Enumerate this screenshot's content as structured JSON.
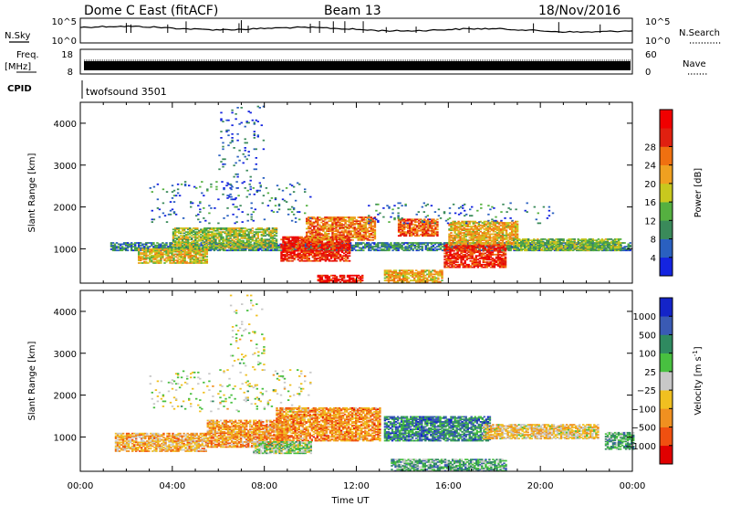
{
  "header": {
    "station": "Dome C East (fitACF)",
    "beam": "Beam 13",
    "date": "18/Nov/2016"
  },
  "panels": {
    "nsky_label": "N.Sky",
    "nsearch_label": "N.Search",
    "freq_label": "Freq.",
    "freq_unit": "[MHz]",
    "nave_label": "Nave",
    "cpid_label": "CPID",
    "cpid_value": "twofsound 3501",
    "nsky_ticks": [
      "10^5",
      "10^0"
    ],
    "nsearch_ticks": [
      "10^5",
      "10^0"
    ],
    "freq_ticks": [
      "18",
      "8"
    ],
    "nave_ticks": [
      "60",
      "0"
    ]
  },
  "chart_data": [
    {
      "type": "heatmap",
      "name": "power",
      "ylabel": "Slant Range [km]",
      "xlabel": "Time UT",
      "x_ticks": [
        "00:00",
        "04:00",
        "08:00",
        "12:00",
        "16:00",
        "20:00",
        "00:00"
      ],
      "y_ticks": [
        1000,
        2000,
        3000,
        4000
      ],
      "ylim": [
        180,
        4500
      ],
      "colorbar_label": "Power [dB]",
      "colorbar_ticks": [
        "4",
        "8",
        "12",
        "16",
        "20",
        "24",
        "28"
      ],
      "colorbar_colors": [
        "#1424e0",
        "#2a60c0",
        "#3a8a5a",
        "#55b040",
        "#c8c81e",
        "#f0a020",
        "#f07010",
        "#e02010",
        "#f00000"
      ],
      "blobs": [
        {
          "t0": 1.3,
          "t1": 23.9,
          "r0": 950,
          "r1": 1150,
          "level": 0.25
        },
        {
          "t0": 2.5,
          "t1": 5.5,
          "r0": 650,
          "r1": 1000,
          "level": 0.55
        },
        {
          "t0": 4.0,
          "t1": 8.5,
          "r0": 1000,
          "r1": 1500,
          "level": 0.45
        },
        {
          "t0": 8.7,
          "t1": 11.7,
          "r0": 700,
          "r1": 1300,
          "level": 0.85
        },
        {
          "t0": 9.8,
          "t1": 12.8,
          "r0": 1200,
          "r1": 1750,
          "level": 0.7
        },
        {
          "t0": 10.3,
          "t1": 12.3,
          "r0": 200,
          "r1": 380,
          "level": 0.9
        },
        {
          "t0": 13.2,
          "t1": 15.7,
          "r0": 200,
          "r1": 500,
          "level": 0.6
        },
        {
          "t0": 13.8,
          "t1": 15.5,
          "r0": 1300,
          "r1": 1700,
          "level": 0.75
        },
        {
          "t0": 15.8,
          "t1": 18.5,
          "r0": 550,
          "r1": 1100,
          "level": 0.85
        },
        {
          "t0": 16.0,
          "t1": 19.0,
          "r0": 1100,
          "r1": 1650,
          "level": 0.6
        },
        {
          "t0": 18.8,
          "t1": 23.5,
          "r0": 950,
          "r1": 1250,
          "level": 0.4
        },
        {
          "t0": 6.0,
          "t1": 8.0,
          "r0": 2200,
          "r1": 4400,
          "level": 0.15,
          "sparse": true
        },
        {
          "t0": 3.0,
          "t1": 10.0,
          "r0": 1600,
          "r1": 2600,
          "level": 0.2,
          "sparse": true
        },
        {
          "t0": 12.5,
          "t1": 20.5,
          "r0": 1600,
          "r1": 2100,
          "level": 0.2,
          "sparse": true
        }
      ]
    },
    {
      "type": "heatmap",
      "name": "velocity",
      "ylabel": "Slant Range [km]",
      "xlabel": "Time UT",
      "x_ticks": [
        "00:00",
        "04:00",
        "08:00",
        "12:00",
        "16:00",
        "20:00",
        "00:00"
      ],
      "y_ticks": [
        1000,
        2000,
        3000,
        4000
      ],
      "ylim": [
        180,
        4500
      ],
      "colorbar_label": "Velocity [m s",
      "colorbar_label_sup": "-1",
      "colorbar_label_end": "]",
      "colorbar_ticks": [
        "1000",
        "500",
        "100",
        "25",
        "−25",
        "−100",
        "−500",
        "−1000"
      ],
      "colorbar_colors": [
        "#1424c8",
        "#3a5ab4",
        "#2f8a60",
        "#48c040",
        "#c8c8c8",
        "#f0c020",
        "#f09020",
        "#f05010",
        "#e00000"
      ],
      "blobs": [
        {
          "t0": 1.5,
          "t1": 5.5,
          "r0": 650,
          "r1": 1100,
          "level": 0.65
        },
        {
          "t0": 5.5,
          "t1": 9.0,
          "r0": 750,
          "r1": 1400,
          "level": 0.7
        },
        {
          "t0": 8.5,
          "t1": 13.0,
          "r0": 900,
          "r1": 1700,
          "level": 0.72
        },
        {
          "t0": 7.5,
          "t1": 10.0,
          "r0": 600,
          "r1": 900,
          "level": 0.45
        },
        {
          "t0": 13.2,
          "t1": 17.8,
          "r0": 900,
          "r1": 1500,
          "level": 0.25
        },
        {
          "t0": 13.5,
          "t1": 18.5,
          "r0": 180,
          "r1": 480,
          "level": 0.35
        },
        {
          "t0": 17.5,
          "t1": 22.5,
          "r0": 950,
          "r1": 1300,
          "level": 0.6
        },
        {
          "t0": 22.8,
          "t1": 24.0,
          "r0": 700,
          "r1": 1100,
          "level": 0.35
        },
        {
          "t0": 3.0,
          "t1": 10.0,
          "r0": 1600,
          "r1": 2600,
          "level": 0.5,
          "sparse": true
        },
        {
          "t0": 6.5,
          "t1": 8.0,
          "r0": 2600,
          "r1": 4400,
          "level": 0.5,
          "sparse": true
        }
      ]
    }
  ]
}
